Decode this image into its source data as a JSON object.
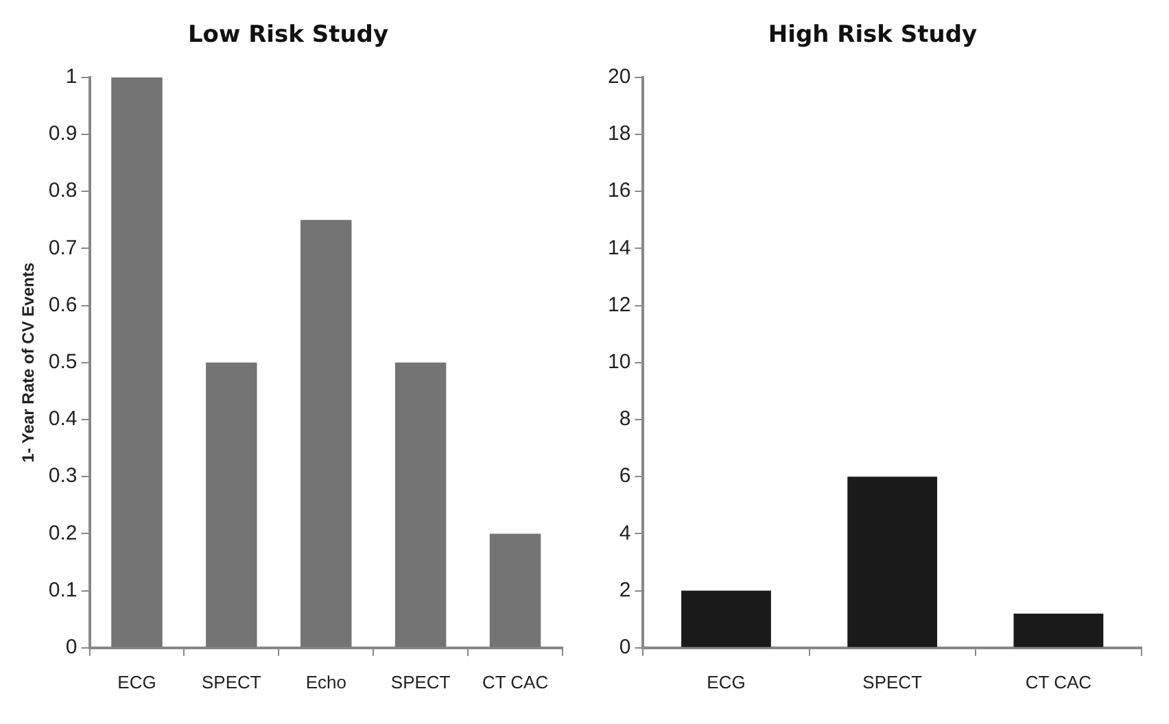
{
  "chart_data": [
    {
      "type": "bar",
      "title": "Low Risk Study",
      "ylabel": "1- Year Rate of CV Events",
      "categories": [
        "ECG",
        "SPECT",
        "Echo",
        "SPECT",
        "CT CAC"
      ],
      "values": [
        1.0,
        0.5,
        0.75,
        0.5,
        0.2
      ],
      "color": "#747474",
      "ylim": [
        0,
        1
      ],
      "yticks": [
        0,
        0.1,
        0.2,
        0.3,
        0.4,
        0.5,
        0.6,
        0.7,
        0.8,
        0.9,
        1
      ],
      "grid": false,
      "legend": false
    },
    {
      "type": "bar",
      "title": "High Risk Study",
      "categories": [
        "ECG",
        "SPECT",
        "CT CAC"
      ],
      "values": [
        2.0,
        6.0,
        1.2
      ],
      "color": "#1a1a1a",
      "ylim": [
        0,
        20
      ],
      "yticks": [
        0,
        2,
        4,
        6,
        8,
        10,
        12,
        14,
        16,
        18,
        20
      ],
      "grid": false,
      "legend": false
    }
  ]
}
